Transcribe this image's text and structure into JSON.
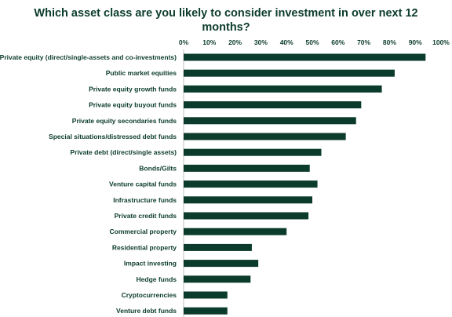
{
  "colors": {
    "bar": "#0b3b2c",
    "text": "#0b3b2c",
    "axis": "#bfbfbf"
  },
  "chart_data": {
    "type": "bar",
    "orientation": "horizontal",
    "title": "Which asset class are you likely to consider investment in over next 12 months?",
    "title_lines": [
      "Which asset class are you likely to consider investment in over next 12",
      "months?"
    ],
    "xlabel": "",
    "ylabel": "",
    "xlim": [
      0,
      100
    ],
    "x_ticks": [
      "0%",
      "10%",
      "20%",
      "30%",
      "40%",
      "50%",
      "60%",
      "70%",
      "80%",
      "90%",
      "100%"
    ],
    "x_axis_position": "top",
    "grid": false,
    "legend": "none",
    "categories": [
      "Private equity (direct/single-assets and co-investments)",
      "Public market equities",
      "Private equity growth funds",
      "Private equity buyout funds",
      "Private equity secondaries funds",
      "Special situations/distressed debt funds",
      "Private debt (direct/single assets)",
      "Bonds/Gilts",
      "Venture capital funds",
      "Infrastructure funds",
      "Private credit funds",
      "Commercial property",
      "Residential property",
      "Impact investing",
      "Hedge funds",
      "Cryptocurrencies",
      "Venture debt funds"
    ],
    "values": [
      94,
      82,
      77,
      69,
      67,
      63,
      53.5,
      49,
      52,
      50,
      48.5,
      40,
      26.5,
      29,
      26,
      17,
      17
    ],
    "unit": "%"
  }
}
